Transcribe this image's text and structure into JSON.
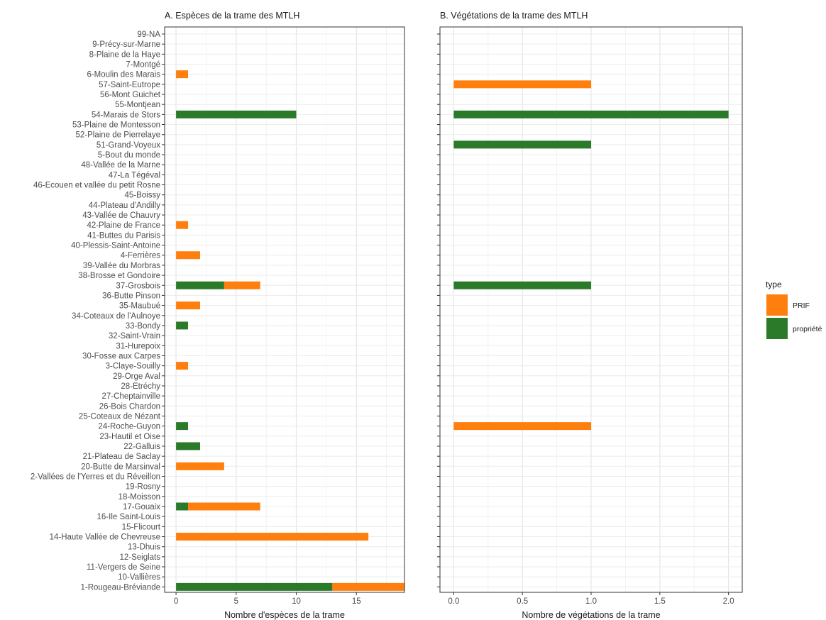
{
  "chart_data": {
    "type": "bar",
    "orientation": "horizontal",
    "stacked": true,
    "grid": true,
    "legend_position": "right",
    "legend_title": "type",
    "series_colors": {
      "PRIF": "#FF7F0E",
      "propriété": "#2A7A2A"
    },
    "categories": [
      "99-NA",
      "9-Précy-sur-Marne",
      "8-Plaine de la Haye",
      "7-Montgé",
      "6-Moulin des Marais",
      "57-Saint-Eutrope",
      "56-Mont Guichet",
      "55-Montjean",
      "54-Marais de Stors",
      "53-Plaine de Montesson",
      "52-Plaine de Pierrelaye",
      "51-Grand-Voyeux",
      "5-Bout du monde",
      "48-Vallée de la Marne",
      "47-La Tégéval",
      "46-Ecouen et vallée du petit Rosne",
      "45-Boissy",
      "44-Plateau d'Andilly",
      "43-Vallée de Chauvry",
      "42-Plaine de France",
      "41-Buttes du Parisis",
      "40-Plessis-Saint-Antoine",
      "4-Ferrières",
      "39-Vallée du Morbras",
      "38-Brosse et Gondoire",
      "37-Grosbois",
      "36-Butte Pinson",
      "35-Maubué",
      "34-Coteaux de l'Aulnoye",
      "33-Bondy",
      "32-Saint-Vrain",
      "31-Hurepoix",
      "30-Fosse aux Carpes",
      "3-Claye-Souilly",
      "29-Orge Aval",
      "28-Etréchy",
      "27-Cheptainville",
      "26-Bois Chardon",
      "25-Coteaux de Nézant",
      "24-Roche-Guyon",
      "23-Hautil et Oise",
      "22-Galluis",
      "21-Plateau de Saclay",
      "20-Butte de Marsinval",
      "2-Vallées de l'Yerres et du Réveillon",
      "19-Rosny",
      "18-Moisson",
      "17-Gouaix",
      "16-Ile Saint-Louis",
      "15-Flicourt",
      "14-Haute Vallée de Chevreuse",
      "13-Dhuis",
      "12-Seiglats",
      "11-Vergers de Seine",
      "10-Vallières",
      "1-Rougeau-Bréviande"
    ],
    "panels": [
      {
        "title": "A. Espèces de la trame des MTLH",
        "xlabel": "Nombre d'espèces de la trame",
        "xlim": [
          -0.95,
          19.0
        ],
        "xticks": [
          0,
          5,
          10,
          15
        ],
        "xtick_labels": [
          "0",
          "5",
          "10",
          "15"
        ],
        "series": [
          {
            "name": "propriété",
            "values": {
              "54-Marais de Stors": 10,
              "37-Grosbois": 4,
              "33-Bondy": 1,
              "24-Roche-Guyon": 1,
              "22-Galluis": 2,
              "17-Gouaix": 1,
              "1-Rougeau-Bréviande": 13
            }
          },
          {
            "name": "PRIF",
            "values": {
              "6-Moulin des Marais": 1,
              "42-Plaine de France": 1,
              "4-Ferrières": 2,
              "37-Grosbois": 3,
              "35-Maubué": 2,
              "3-Claye-Souilly": 1,
              "20-Butte de Marsinval": 4,
              "17-Gouaix": 6,
              "14-Haute Vallée de Chevreuse": 16,
              "1-Rougeau-Bréviande": 6
            }
          }
        ]
      },
      {
        "title": "B. Végétations de la trame des MTLH",
        "xlabel": "Nombre de végétations de la trame",
        "xlim": [
          -0.1,
          2.1
        ],
        "xticks": [
          0,
          0.5,
          1,
          1.5,
          2
        ],
        "xtick_labels": [
          "0.0",
          "0.5",
          "1.0",
          "1.5",
          "2.0"
        ],
        "series": [
          {
            "name": "propriété",
            "values": {
              "54-Marais de Stors": 2,
              "51-Grand-Voyeux": 1,
              "37-Grosbois": 1
            }
          },
          {
            "name": "PRIF",
            "values": {
              "57-Saint-Eutrope": 1,
              "24-Roche-Guyon": 1
            }
          }
        ]
      }
    ]
  }
}
